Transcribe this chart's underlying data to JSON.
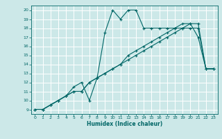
{
  "xlabel": "Humidex (Indice chaleur)",
  "bg_color": "#cce8e8",
  "grid_color": "#ffffff",
  "line_color": "#006666",
  "xlim": [
    -0.5,
    23.5
  ],
  "ylim": [
    8.5,
    20.5
  ],
  "xticks": [
    0,
    1,
    2,
    3,
    4,
    5,
    6,
    7,
    8,
    9,
    10,
    11,
    12,
    13,
    14,
    15,
    16,
    17,
    18,
    19,
    20,
    21,
    22,
    23
  ],
  "yticks": [
    9,
    10,
    11,
    12,
    13,
    14,
    15,
    16,
    17,
    18,
    19,
    20
  ],
  "line1_x": [
    0,
    1,
    2,
    3,
    4,
    5,
    6,
    7,
    8,
    9,
    10,
    11,
    12,
    13,
    14,
    15,
    16,
    17,
    18,
    19,
    20,
    21,
    22,
    23
  ],
  "line1_y": [
    9.0,
    9.0,
    9.5,
    10.0,
    10.5,
    11.5,
    12.0,
    10.0,
    12.5,
    17.5,
    20.0,
    19.0,
    20.0,
    20.0,
    18.0,
    18.0,
    18.0,
    18.0,
    18.0,
    18.5,
    18.5,
    17.0,
    13.5,
    13.5
  ],
  "line2_x": [
    0,
    1,
    2,
    3,
    4,
    5,
    6,
    7,
    8,
    9,
    10,
    11,
    12,
    13,
    14,
    15,
    16,
    17,
    18,
    19,
    20,
    21,
    22,
    23
  ],
  "line2_y": [
    9.0,
    9.0,
    9.5,
    10.0,
    10.5,
    11.0,
    11.0,
    12.0,
    12.5,
    13.0,
    13.5,
    14.0,
    14.5,
    15.0,
    15.5,
    16.0,
    16.5,
    17.0,
    17.5,
    18.0,
    18.0,
    18.0,
    13.5,
    13.5
  ],
  "line3_x": [
    0,
    1,
    2,
    3,
    4,
    5,
    6,
    7,
    8,
    9,
    10,
    11,
    12,
    13,
    14,
    15,
    16,
    17,
    18,
    19,
    20,
    21,
    22,
    23
  ],
  "line3_y": [
    9.0,
    9.0,
    9.5,
    10.0,
    10.5,
    11.0,
    11.0,
    12.0,
    12.5,
    13.0,
    13.5,
    14.0,
    15.0,
    15.5,
    16.0,
    16.5,
    17.0,
    17.5,
    18.0,
    18.0,
    18.5,
    18.5,
    13.5,
    13.5
  ]
}
